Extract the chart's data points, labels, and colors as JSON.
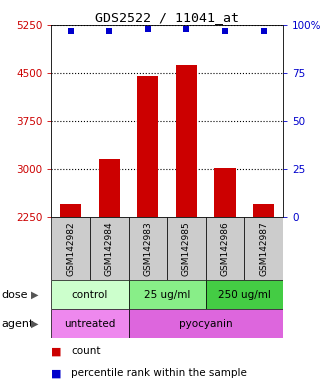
{
  "title": "GDS2522 / 11041_at",
  "samples": [
    "GSM142982",
    "GSM142984",
    "GSM142983",
    "GSM142985",
    "GSM142986",
    "GSM142987"
  ],
  "bar_values": [
    2460,
    3160,
    4450,
    4620,
    3010,
    2460
  ],
  "percentile_values": [
    97,
    97,
    98,
    98,
    97,
    97
  ],
  "bar_color": "#cc0000",
  "dot_color": "#0000cc",
  "ylim_left": [
    2250,
    5250
  ],
  "yticks_left": [
    2250,
    3000,
    3750,
    4500,
    5250
  ],
  "yticks_right": [
    0,
    25,
    50,
    75,
    100
  ],
  "ytick_labels_right": [
    "0",
    "25",
    "50",
    "75",
    "100%"
  ],
  "label_left_color": "#cc0000",
  "label_right_color": "#0000cc",
  "sample_box_color": "#cccccc",
  "dose_col_map": [
    [
      0,
      2,
      "control",
      "#ccffcc"
    ],
    [
      2,
      4,
      "25 ug/ml",
      "#88ee88"
    ],
    [
      4,
      6,
      "250 ug/ml",
      "#44cc44"
    ]
  ],
  "agent_col_map": [
    [
      0,
      2,
      "untreated",
      "#ee88ee"
    ],
    [
      2,
      6,
      "pyocyanin",
      "#dd66dd"
    ]
  ],
  "bar_width": 0.55,
  "legend_square_red": "#cc0000",
  "legend_square_blue": "#0000cc"
}
